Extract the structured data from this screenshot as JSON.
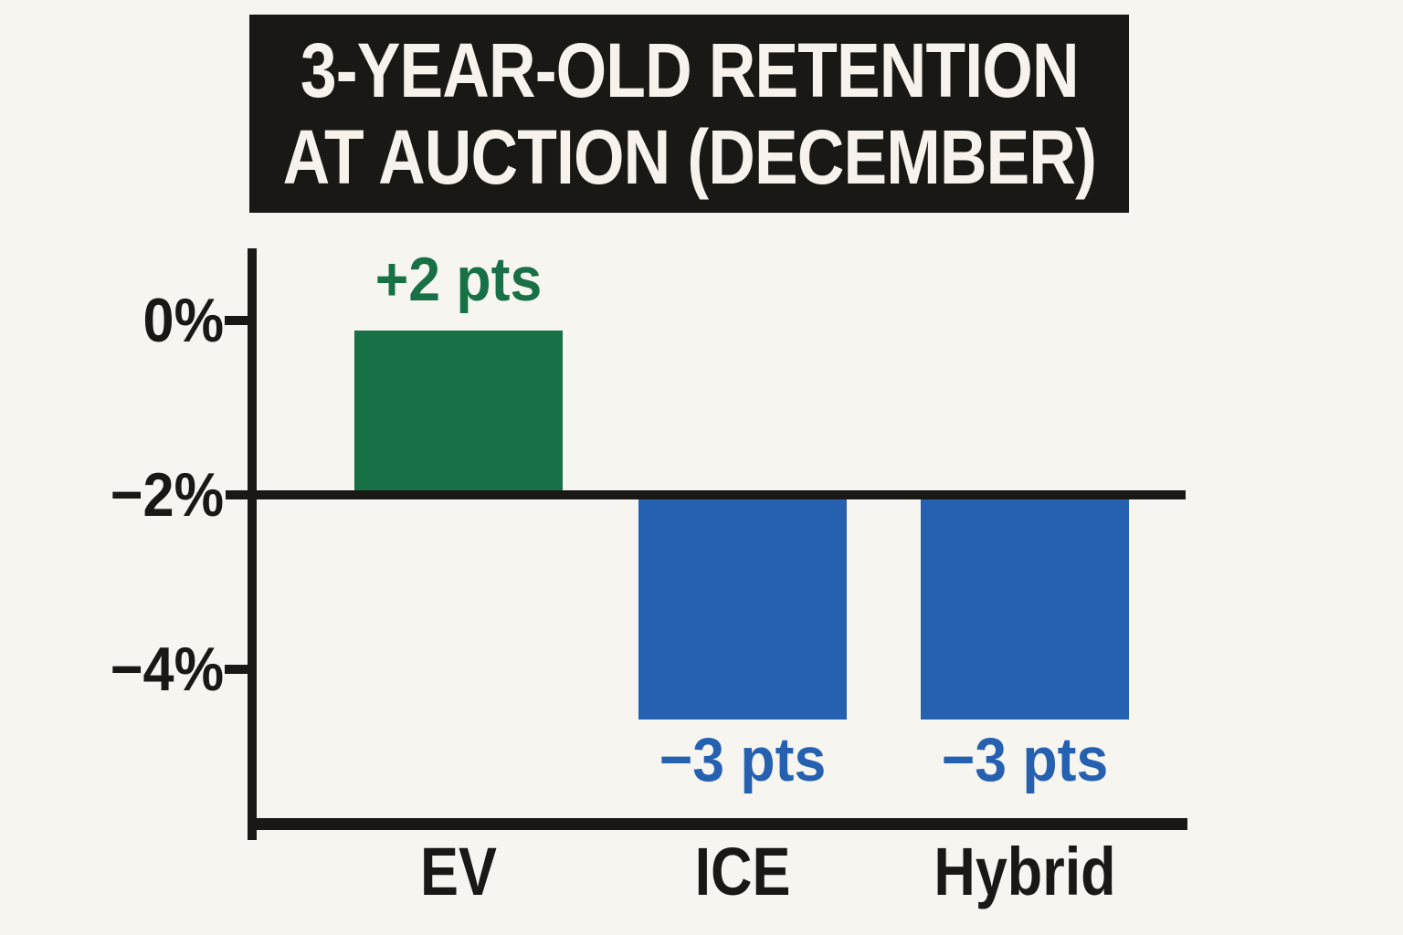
{
  "chart_data": {
    "type": "bar",
    "title": "3-YEAR-OLD RETENTION AT AUCTION (DECEMBER)",
    "title_lines": [
      "3-YEAR-OLD RETENTION",
      "AT AUCTION (DECEMBER)"
    ],
    "categories": [
      "EV",
      "ICE",
      "Hybrid"
    ],
    "values": [
      2,
      -3,
      -3
    ],
    "value_labels": [
      "+2 pts",
      "−3 pts",
      "−3 pts"
    ],
    "value_unit": "percentage points vs baseline",
    "baseline_pct": -2,
    "y_ticks": [
      {
        "value": 0,
        "label": "0%"
      },
      {
        "value": -2,
        "label": "−2%"
      },
      {
        "value": -4,
        "label": "−4%"
      }
    ],
    "ylim": [
      -5.8,
      0.8
    ],
    "grid": false,
    "legend": false,
    "bar_colors": [
      "#177046",
      "#2561b0",
      "#2561b0"
    ],
    "label_placement": [
      "above",
      "below",
      "below"
    ]
  },
  "colors": {
    "background": "#f7f5ef",
    "ink": "#1a1815",
    "title_bg": "#1a1815",
    "title_text": "#f7f3ec",
    "positive_green": "#177046",
    "negative_blue": "#2561b0"
  }
}
